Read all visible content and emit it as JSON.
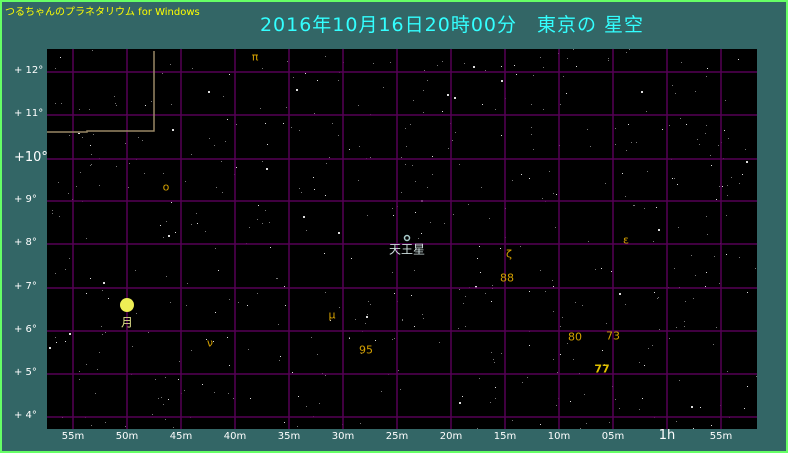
{
  "app_title": "つるちゃんのプラネタリウム for Windows",
  "view_title": "2016年10月16日20時00分　東京の 星空",
  "colors": {
    "background": "#336666",
    "border": "#66ff66",
    "grid": "#550055",
    "label": "#d4a000",
    "title": "#33ffff",
    "moon": "#eeee55",
    "uranus": "#aacccc"
  },
  "dec_labels": [
    "+ 12°",
    "+ 11°",
    "+10°",
    "+ 9°",
    "+ 8°",
    "+ 7°",
    "+ 6°",
    "+ 5°",
    "+ 4°"
  ],
  "ra_labels": [
    "55m",
    "50m",
    "45m",
    "40m",
    "35m",
    "30m",
    "25m",
    "20m",
    "15m",
    "10m",
    "05m",
    "1h",
    "55m"
  ],
  "stars_labels": [
    {
      "text": "π",
      "name": "star-pi"
    },
    {
      "text": "ο",
      "name": "star-omicron"
    },
    {
      "text": "μ",
      "name": "star-mu"
    },
    {
      "text": "ν",
      "name": "star-nu"
    },
    {
      "text": "ζ",
      "name": "star-zeta"
    },
    {
      "text": "ε",
      "name": "star-epsilon"
    },
    {
      "text": "88",
      "name": "star-88"
    },
    {
      "text": "95",
      "name": "star-95"
    },
    {
      "text": "80",
      "name": "star-80"
    },
    {
      "text": "73",
      "name": "star-73"
    },
    {
      "text": "77",
      "name": "star-77"
    }
  ],
  "planets": {
    "uranus": "天王星",
    "moon": "月"
  }
}
